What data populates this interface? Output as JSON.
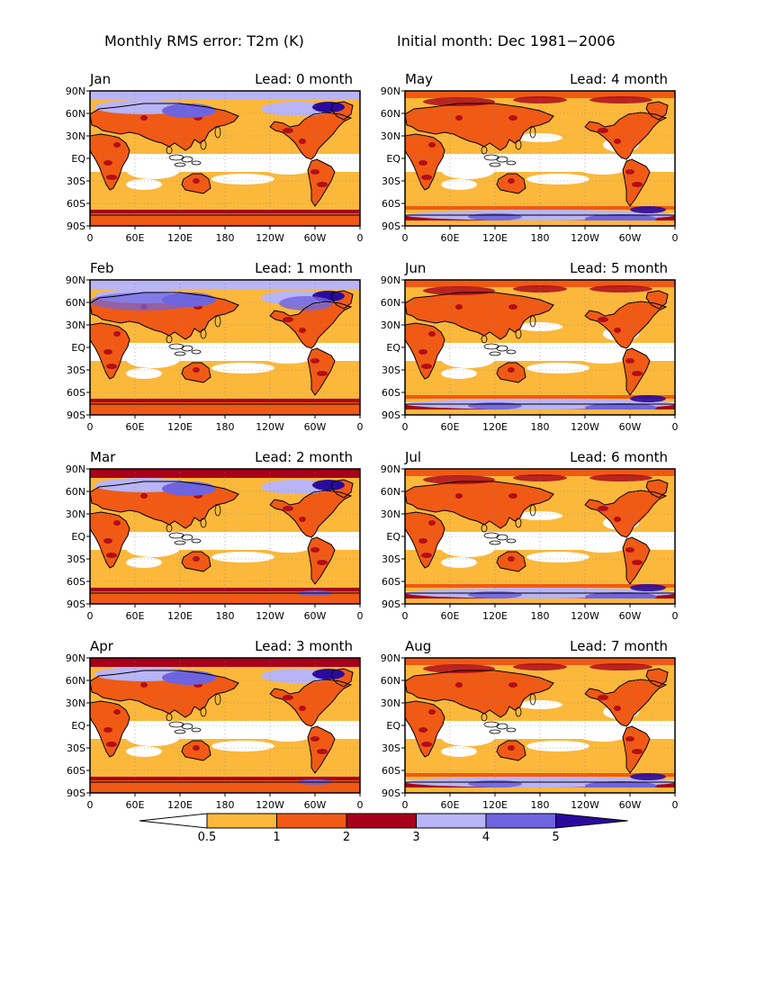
{
  "header": {
    "left": "Monthly RMS error: T2m (K)",
    "right": "Initial month: Dec 1981−2006"
  },
  "panels": [
    {
      "month": "Jan",
      "lead": "Lead: 0 month"
    },
    {
      "month": "May",
      "lead": "Lead: 4 month"
    },
    {
      "month": "Feb",
      "lead": "Lead: 1 month"
    },
    {
      "month": "Jun",
      "lead": "Lead: 5 month"
    },
    {
      "month": "Mar",
      "lead": "Lead: 2 month"
    },
    {
      "month": "Jul",
      "lead": "Lead: 6 month"
    },
    {
      "month": "Apr",
      "lead": "Lead: 3 month"
    },
    {
      "month": "Aug",
      "lead": "Lead: 7 month"
    }
  ],
  "lat_labels": [
    "90N",
    "60N",
    "30N",
    "EQ",
    "30S",
    "60S",
    "90S"
  ],
  "lon_labels": [
    "0",
    "60E",
    "120E",
    "180",
    "120W",
    "60W",
    "0"
  ],
  "colorbar": {
    "labels": [
      "0.5",
      "1",
      "2",
      "3",
      "4",
      "5"
    ],
    "colors": [
      "#ffffff",
      "#fbb83b",
      "#f05a14",
      "#a8001a",
      "#b9b4f5",
      "#6e64e0",
      "#2a0a9e"
    ]
  }
}
